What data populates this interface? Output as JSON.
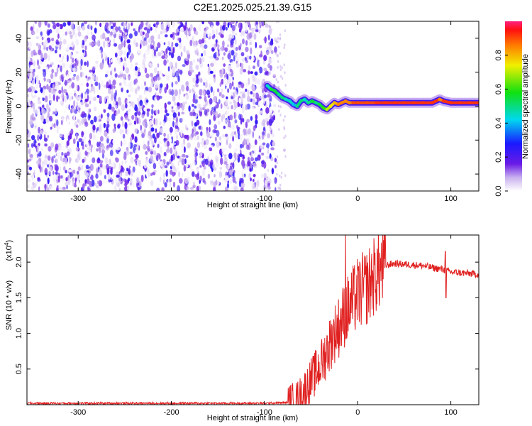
{
  "title": "C2E1.2025.025.21.39.G15",
  "chart_data": [
    {
      "type": "heatmap",
      "xlabel": "Height of straight line (km)",
      "ylabel": "Frequency (Hz)",
      "xlim": [
        -355,
        130
      ],
      "ylim": [
        -50,
        50
      ],
      "xticks": [
        -300,
        -200,
        -100,
        0,
        100
      ],
      "yticks": [
        -40,
        -20,
        0,
        20,
        40
      ],
      "noise_region_x": [
        -355,
        -88
      ],
      "ridge": {
        "x": [
          -97,
          -93,
          -89,
          -85,
          -81,
          -77,
          -73,
          -69,
          -65,
          -61,
          -57,
          -53,
          -49,
          -45,
          -41,
          -37,
          -33,
          -29,
          -25,
          -21,
          -17,
          -13,
          -9,
          -5,
          0,
          10,
          20,
          30,
          40,
          50,
          60,
          70,
          80,
          88,
          92,
          100,
          110,
          120,
          130
        ],
        "freq": [
          12,
          10,
          9,
          7,
          5,
          4,
          3,
          1,
          0,
          3,
          4,
          2,
          3,
          2,
          1,
          -1,
          -2,
          0,
          2,
          1,
          2,
          3,
          2,
          2,
          2,
          2,
          2,
          2,
          2,
          2,
          2,
          2,
          2,
          4,
          3,
          2,
          2,
          2,
          2
        ],
        "amplitude": [
          0.45,
          0.55,
          0.55,
          0.5,
          0.5,
          0.45,
          0.45,
          0.4,
          0.5,
          0.5,
          0.45,
          0.5,
          0.55,
          0.5,
          0.55,
          0.6,
          0.7,
          0.75,
          0.8,
          0.85,
          0.85,
          0.85,
          0.85,
          0.9,
          0.9,
          0.9,
          0.92,
          0.92,
          0.92,
          0.92,
          0.92,
          0.92,
          0.92,
          0.85,
          0.92,
          0.92,
          0.92,
          0.92,
          0.92
        ]
      },
      "colorbar": {
        "label": "Normalized spectral amplitude",
        "range": [
          0,
          1
        ],
        "ticks": [
          "0.0",
          "0.2",
          "0.4",
          "0.6",
          "0.8"
        ]
      }
    },
    {
      "type": "line",
      "xlabel": "Height of straight line (km)",
      "ylabel": "SNR (10 * v/v)",
      "multiplier_label": "(x10",
      "multiplier_exp": "4",
      "multiplier_close": ")",
      "xlim": [
        -355,
        130
      ],
      "ylim": [
        0,
        2.38
      ],
      "xticks": [
        -300,
        -200,
        -100,
        0,
        100
      ],
      "yticks": [
        "0.5",
        "1.0",
        "1.5",
        "2.0"
      ],
      "color": "#e02020",
      "series": [
        {
          "x": [
            -355,
            -300,
            -250,
            -200,
            -150,
            -100,
            -75,
            -65,
            -60,
            -55,
            -50,
            -45,
            -40,
            -35,
            -30,
            -25,
            -20,
            -15,
            -10,
            -5,
            0,
            5,
            10,
            15,
            20,
            25,
            30,
            35,
            40,
            50,
            60,
            70,
            80,
            90,
            95,
            100,
            110,
            120,
            130
          ],
          "values": [
            0.02,
            0.02,
            0.02,
            0.02,
            0.02,
            0.02,
            0.03,
            0.08,
            0.15,
            0.25,
            0.35,
            0.45,
            0.55,
            0.7,
            0.85,
            1.0,
            1.1,
            1.25,
            1.35,
            1.45,
            1.55,
            1.6,
            1.65,
            1.75,
            1.85,
            1.9,
            1.95,
            1.97,
            1.98,
            1.97,
            1.96,
            1.95,
            1.92,
            1.9,
            1.88,
            1.86,
            1.85,
            1.84,
            1.83
          ]
        }
      ]
    }
  ]
}
